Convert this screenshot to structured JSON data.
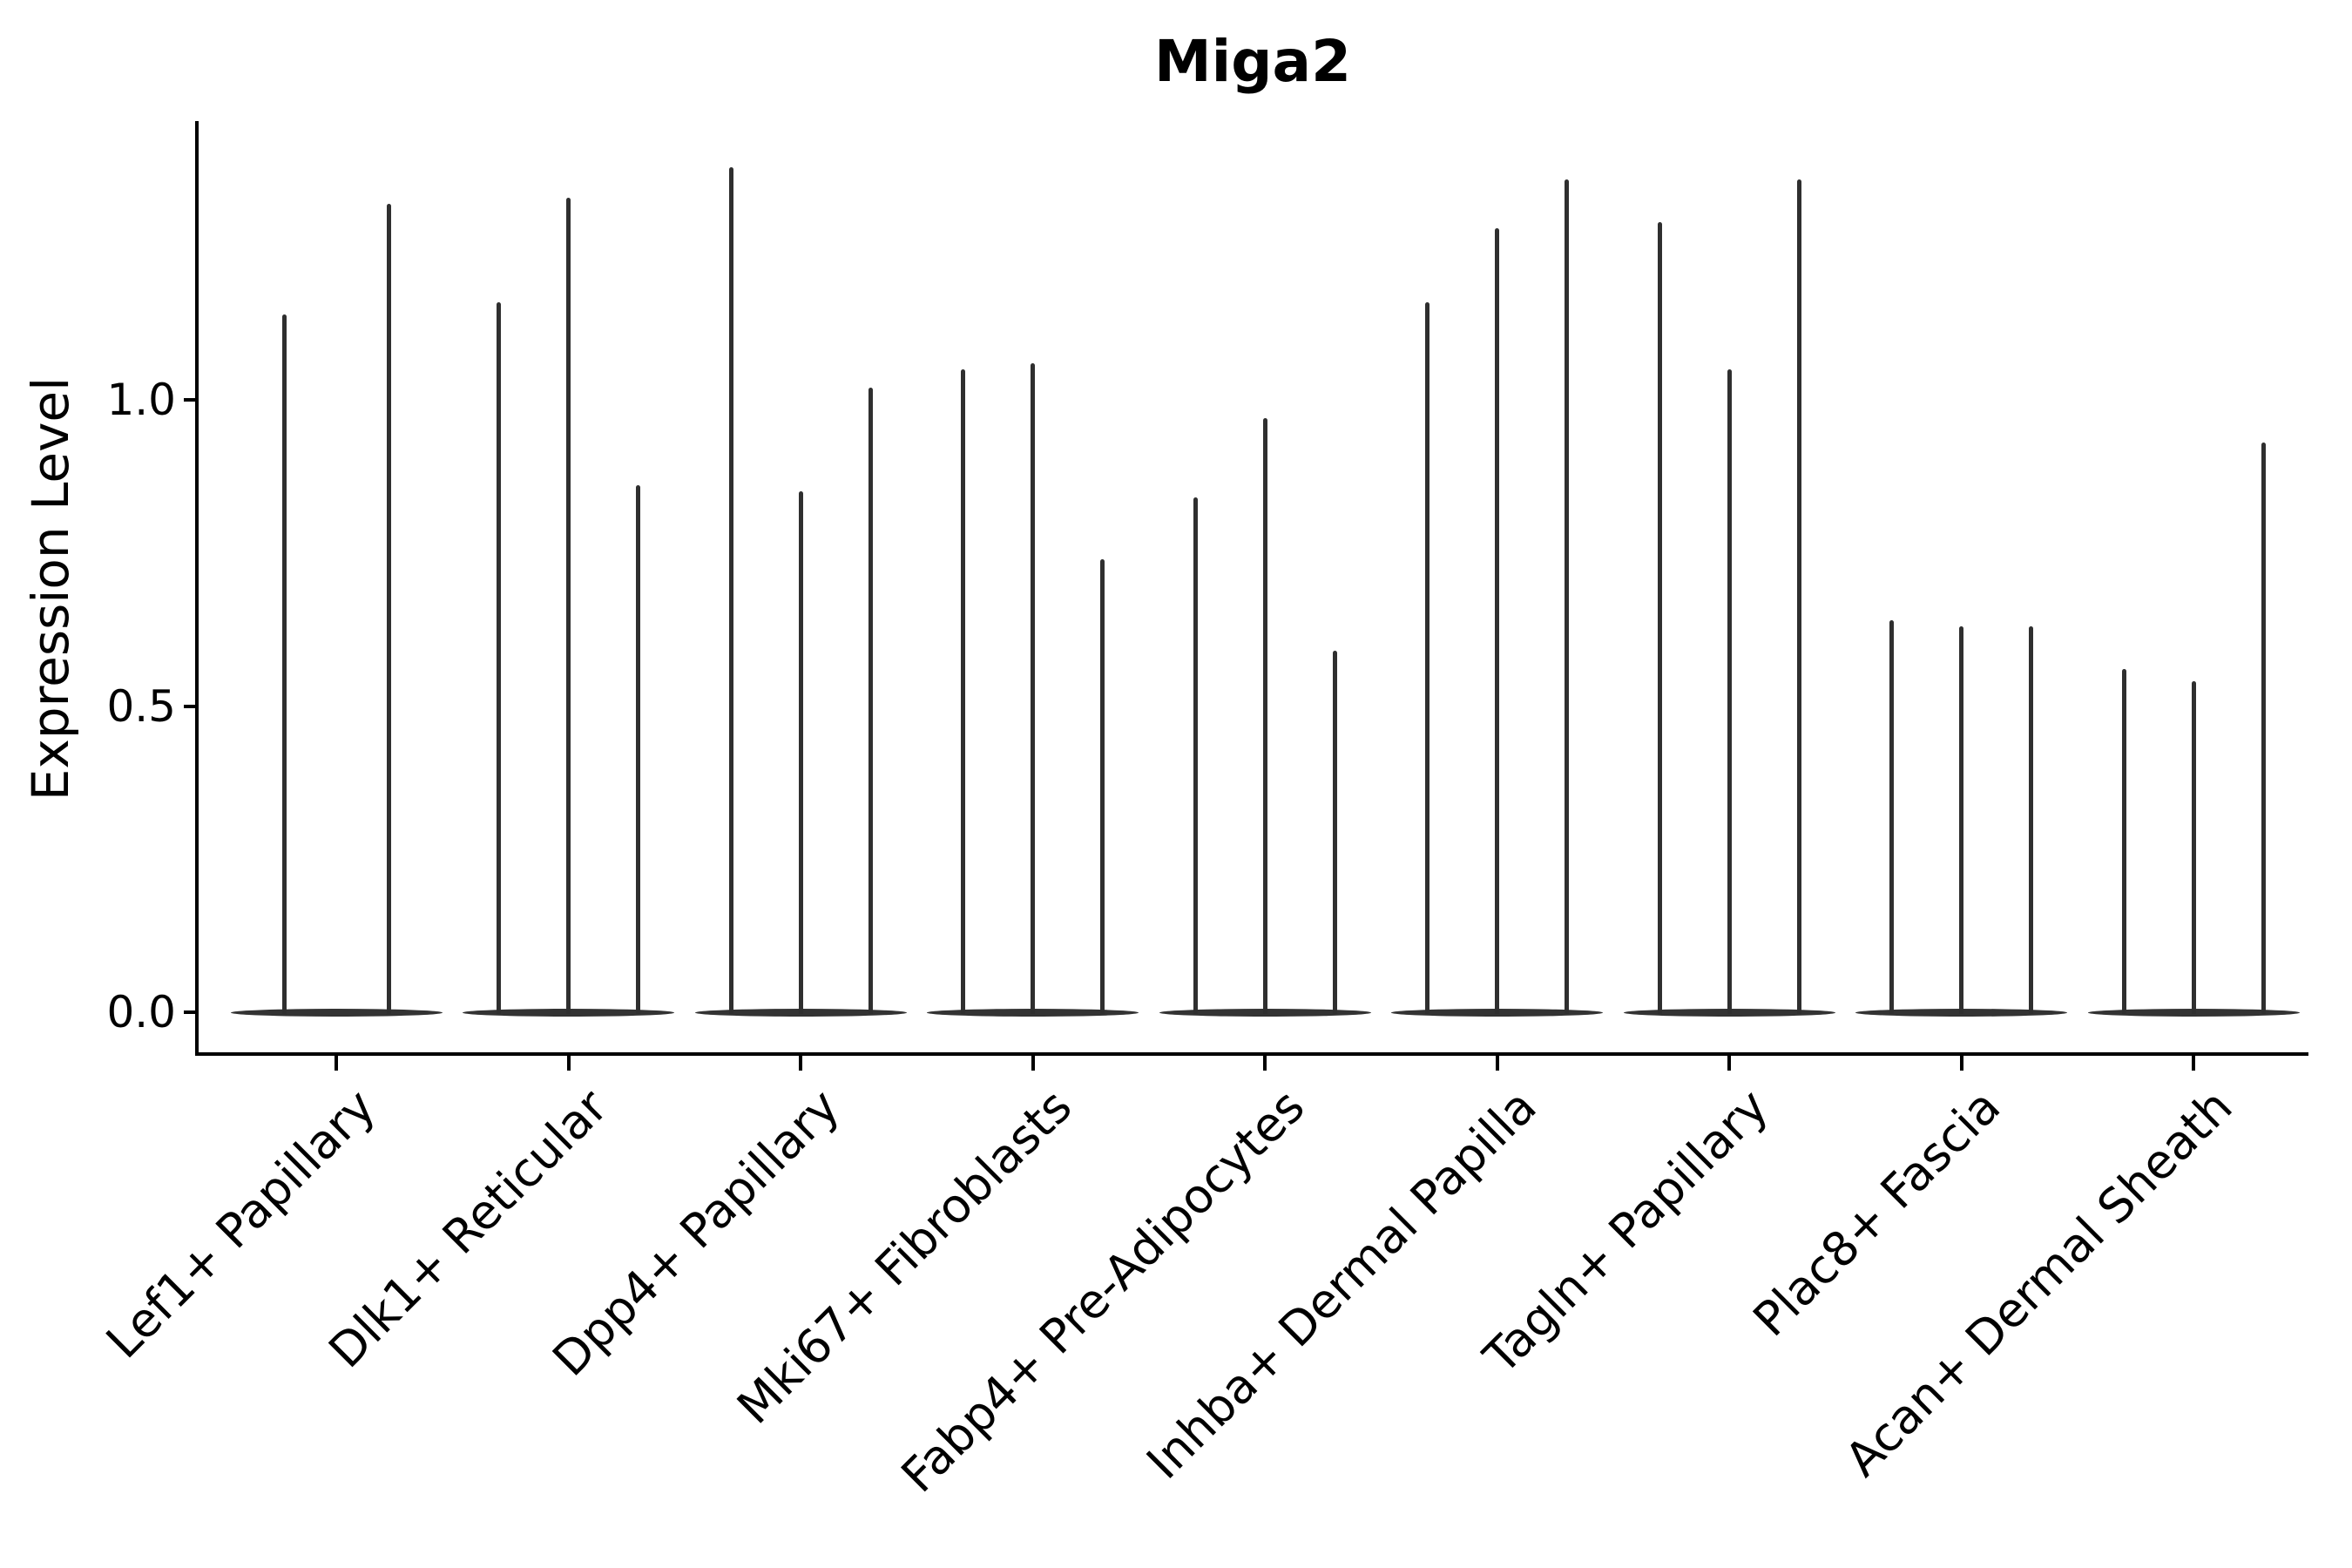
{
  "chart_data": {
    "type": "violin",
    "title": "Miga2",
    "ylabel": "Expression Level",
    "xlabel": "",
    "ylim": [
      -0.07,
      1.45
    ],
    "grid": false,
    "legend_position": "none",
    "yticks": [
      {
        "value": 0.0,
        "label": "0.0"
      },
      {
        "value": 0.5,
        "label": "0.5"
      },
      {
        "value": 1.0,
        "label": "1.0"
      }
    ],
    "categories": [
      {
        "label": "Lef1+ Papillary",
        "violin_max_expression": [
          1.14,
          1.32
        ]
      },
      {
        "label": "Dlk1+ Reticular",
        "violin_max_expression": [
          1.16,
          1.33,
          0.86
        ]
      },
      {
        "label": "Dpp4+ Papillary",
        "violin_max_expression": [
          1.38,
          0.85,
          1.02
        ]
      },
      {
        "label": "Mki67+ Fibroblasts",
        "violin_max_expression": [
          1.05,
          1.06,
          0.74
        ]
      },
      {
        "label": "Fabp4+ Pre-Adipocytes",
        "violin_max_expression": [
          0.84,
          0.97,
          0.59
        ]
      },
      {
        "label": "Inhba+ Dermal Papilla",
        "violin_max_expression": [
          1.16,
          1.28,
          1.36
        ]
      },
      {
        "label": "Tagln+ Papillary",
        "violin_max_expression": [
          1.29,
          1.05,
          1.36
        ]
      },
      {
        "label": "Plac8+ Fascia",
        "violin_max_expression": [
          0.64,
          0.63,
          0.63
        ]
      },
      {
        "label": "Acan+ Dermal Sheath",
        "violin_max_expression": [
          0.56,
          0.54,
          0.93
        ]
      }
    ],
    "shape_note": "Each violin is concentrated at expression 0 (flat lens-shaped base) with a thin vertical tail reaching its max value",
    "colors": {
      "violin": "#2f2f2f",
      "axis": "#000000",
      "text": "#000000",
      "background": "#ffffff"
    }
  }
}
